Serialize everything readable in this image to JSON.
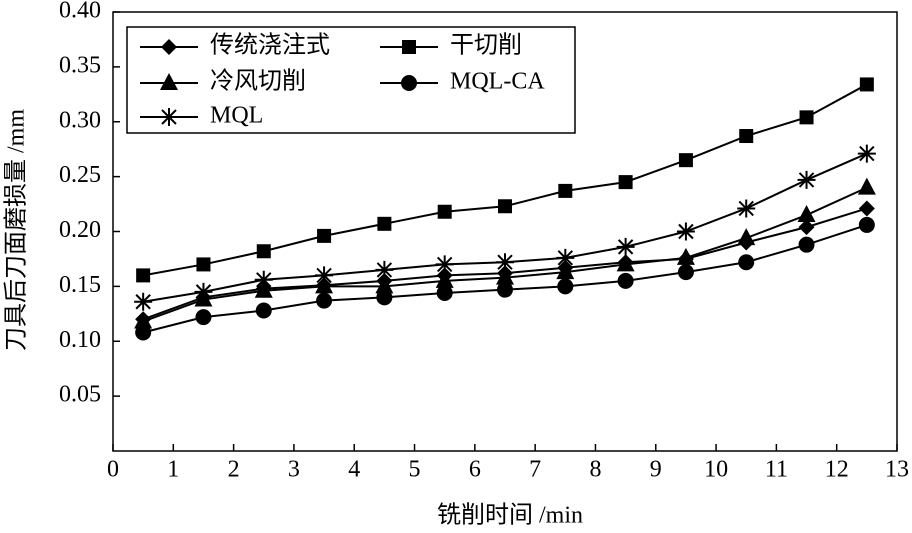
{
  "chart_data": {
    "type": "line",
    "xlabel": "铣削时间 /min",
    "ylabel": "刀具后刀面磨损量 /mm",
    "x": [
      0.5,
      1.5,
      2.5,
      3.5,
      4.5,
      5.5,
      6.5,
      7.5,
      8.5,
      9.5,
      10.5,
      11.5,
      12.5
    ],
    "xlim": [
      0,
      13
    ],
    "xticks": [
      0,
      1,
      2,
      3,
      4,
      5,
      6,
      7,
      8,
      9,
      10,
      11,
      12,
      13
    ],
    "ylim": [
      0,
      0.4
    ],
    "yticks": [
      0.05,
      {
        "value": 0.1,
        "label": "0.10"
      },
      0.15,
      {
        "value": 0.2,
        "label": "0.20"
      },
      0.25,
      {
        "value": 0.3,
        "label": "0.30"
      },
      0.35,
      {
        "value": 0.4,
        "label": "0.40"
      }
    ],
    "legend": "upper left",
    "series": [
      {
        "name": "传统浇注式",
        "color": "#000000",
        "marker": "diamond",
        "values": [
          0.12,
          0.14,
          0.148,
          0.151,
          0.155,
          0.16,
          0.162,
          0.167,
          0.172,
          0.175,
          0.19,
          0.204,
          0.221
        ]
      },
      {
        "name": "干切削",
        "color": "#000000",
        "marker": "square",
        "values": [
          0.16,
          0.17,
          0.182,
          0.196,
          0.207,
          0.218,
          0.223,
          0.237,
          0.245,
          0.265,
          0.287,
          0.304,
          0.334
        ]
      },
      {
        "name": "冷风切削",
        "color": "#000000",
        "marker": "triangle",
        "values": [
          0.118,
          0.138,
          0.146,
          0.15,
          0.15,
          0.155,
          0.158,
          0.163,
          0.17,
          0.176,
          0.194,
          0.215,
          0.24
        ]
      },
      {
        "name": "MQL-CA",
        "color": "#000000",
        "marker": "circle",
        "values": [
          0.108,
          0.122,
          0.128,
          0.137,
          0.14,
          0.144,
          0.147,
          0.15,
          0.155,
          0.163,
          0.172,
          0.188,
          0.206
        ]
      },
      {
        "name": "MQL",
        "color": "#000000",
        "marker": "asterisk",
        "values": [
          0.136,
          0.145,
          0.156,
          0.16,
          0.165,
          0.17,
          0.172,
          0.176,
          0.186,
          0.2,
          0.221,
          0.247,
          0.271
        ]
      }
    ]
  }
}
